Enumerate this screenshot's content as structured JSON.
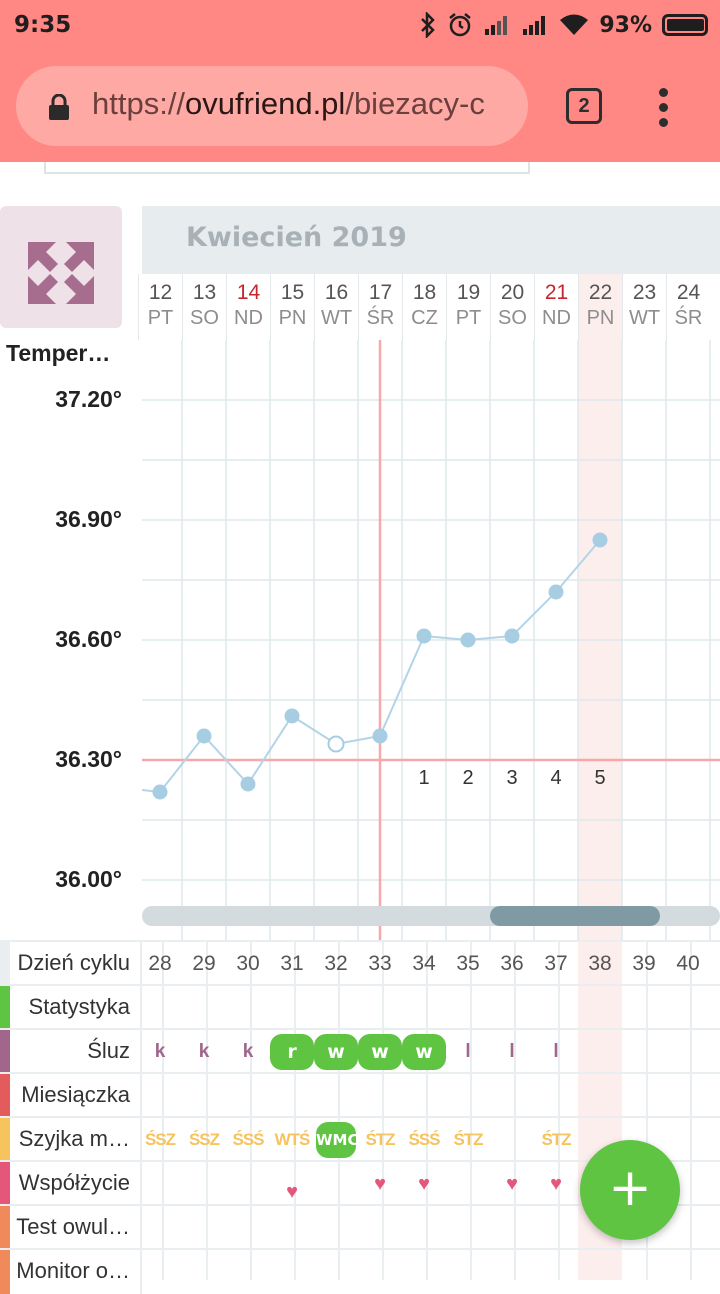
{
  "status_bar": {
    "time": "9:35",
    "battery": "93%"
  },
  "browser": {
    "url_scheme": "https://",
    "url_host": "ovufriend.pl",
    "url_path": "/biezacy-c",
    "tab_count": "2"
  },
  "chart": {
    "label": "Temper…",
    "month_title": "Kwiecień 2019",
    "y_ticks": [
      "37.20°",
      "36.90°",
      "36.60°",
      "36.30°",
      "36.00°"
    ],
    "days": [
      {
        "num": "12",
        "name": "PT",
        "sunday": false
      },
      {
        "num": "13",
        "name": "SO",
        "sunday": false
      },
      {
        "num": "14",
        "name": "ND",
        "sunday": true
      },
      {
        "num": "15",
        "name": "PN",
        "sunday": false
      },
      {
        "num": "16",
        "name": "WT",
        "sunday": false
      },
      {
        "num": "17",
        "name": "ŚR",
        "sunday": false
      },
      {
        "num": "18",
        "name": "CZ",
        "sunday": false
      },
      {
        "num": "19",
        "name": "PT",
        "sunday": false
      },
      {
        "num": "20",
        "name": "SO",
        "sunday": false
      },
      {
        "num": "21",
        "name": "ND",
        "sunday": true
      },
      {
        "num": "22",
        "name": "PN",
        "sunday": false
      },
      {
        "num": "23",
        "name": "WT",
        "sunday": false
      },
      {
        "num": "24",
        "name": "ŚR",
        "sunday": false
      }
    ],
    "post_ovulation_labels": [
      "1",
      "2",
      "3",
      "4",
      "5"
    ],
    "colors": {
      "line": "#b3d4e6",
      "point": "#a7cde3",
      "coverline": "#f7a8a8",
      "ovulation": "#f7a8a8",
      "today_band": "#fdeeee"
    }
  },
  "chart_data": {
    "type": "line",
    "x": [
      "12",
      "13",
      "14",
      "15",
      "16",
      "17",
      "18",
      "19",
      "20",
      "21",
      "22"
    ],
    "series": [
      {
        "values": [
          36.22,
          36.36,
          36.24,
          36.41,
          36.34,
          36.36,
          36.61,
          36.6,
          36.61,
          36.72,
          36.85
        ]
      }
    ],
    "hollow_point_index": 4,
    "coverline": 36.3,
    "ovulation_day": "17",
    "ylim": [
      35.93,
      37.35
    ],
    "ylabel": "Temper…"
  },
  "table": {
    "cycle_days": [
      "28",
      "29",
      "30",
      "31",
      "32",
      "33",
      "34",
      "35",
      "36",
      "37",
      "38",
      "39",
      "40"
    ],
    "rows": [
      {
        "label": "Dzień cyklu",
        "color": "#e9eef0"
      },
      {
        "label": "Statystyka",
        "color": "#5fc441"
      },
      {
        "label": "Śluz",
        "color": "#a0668c"
      },
      {
        "label": "Miesiączka",
        "color": "#e35b5b"
      },
      {
        "label": "Szyjka m…",
        "color": "#f6c35c"
      },
      {
        "label": "Współżycie",
        "color": "#e4567a"
      },
      {
        "label": "Test owul…",
        "color": "#f08a5d"
      },
      {
        "label": "Monitor o…",
        "color": "#f08a5d"
      }
    ],
    "sluz": [
      "k",
      "k",
      "k",
      "r",
      "w",
      "w",
      "w",
      "l",
      "l",
      "l",
      "",
      "",
      ""
    ],
    "sluz_highlight": [
      false,
      false,
      false,
      true,
      true,
      true,
      true,
      false,
      false,
      false,
      false,
      false,
      false
    ],
    "szyjka": [
      "ŚSZ",
      "ŚSZ",
      "ŚSŚ",
      "WTŚ",
      "WMC",
      "ŚTZ",
      "ŚSŚ",
      "ŚTZ",
      "",
      "ŚTZ",
      "",
      "",
      ""
    ],
    "szyjka_highlight": [
      false,
      false,
      false,
      false,
      true,
      false,
      false,
      false,
      false,
      false,
      false,
      false,
      false
    ],
    "intercourse": [
      false,
      false,
      false,
      true,
      false,
      true,
      true,
      false,
      true,
      true,
      false,
      false,
      false
    ]
  },
  "fab_label": "+"
}
